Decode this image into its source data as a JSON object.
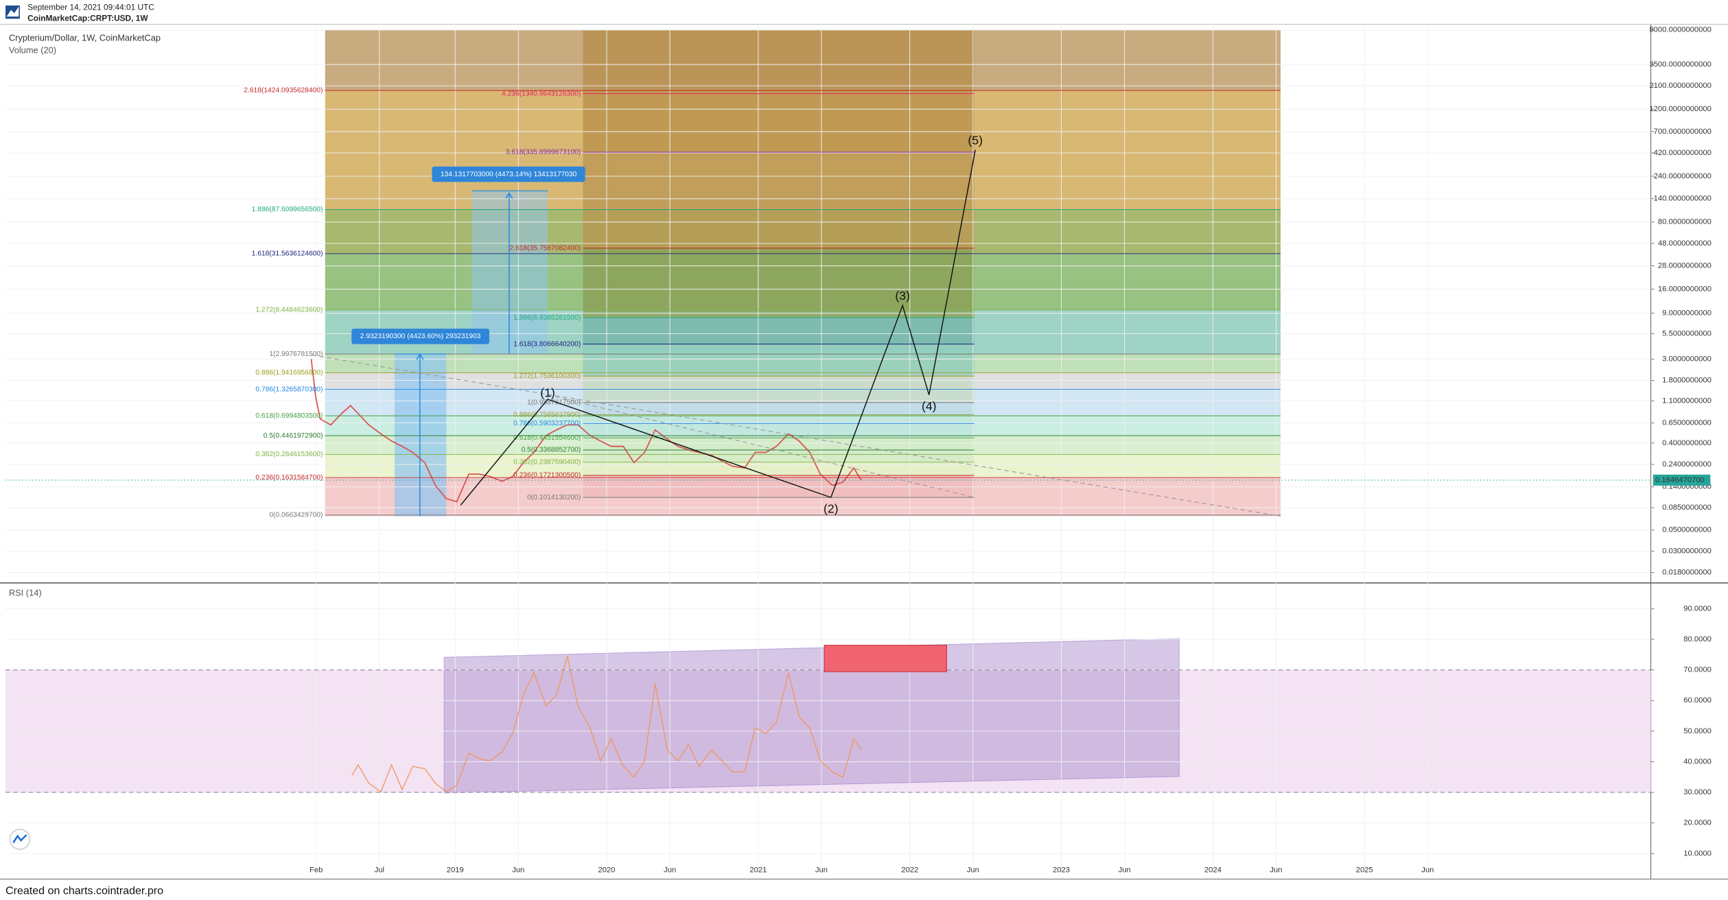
{
  "header": {
    "timestamp": "September 14, 2021 09:44:01 UTC",
    "symbol": "CoinMarketCap:CRPT:USD, 1W"
  },
  "legend": {
    "main": "Crypterium/Dollar, 1W, CoinMarketCap",
    "volume": "Volume (20)",
    "rsi": "RSI (14)"
  },
  "footer": "Created on charts.cointrader.pro",
  "chart_data": [
    {
      "type": "line",
      "log_y": true,
      "color": "#d9534f",
      "grid": true,
      "x": [
        2018.05,
        2018.08,
        2018.11,
        2018.18,
        2018.25,
        2018.31,
        2018.36,
        2018.43,
        2018.51,
        2018.58,
        2018.65,
        2018.72,
        2018.8,
        2018.87,
        2018.94,
        2019.01,
        2019.09,
        2019.16,
        2019.23,
        2019.31,
        2019.38,
        2019.45,
        2019.52,
        2019.6,
        2019.67,
        2019.74,
        2019.81,
        2019.89,
        2019.96,
        2020.03,
        2020.11,
        2020.18,
        2020.25,
        2020.32,
        2020.4,
        2020.47,
        2020.54,
        2020.61,
        2020.69,
        2020.76,
        2020.83,
        2020.91,
        2020.98,
        2021.05,
        2021.12,
        2021.2,
        2021.27,
        2021.34,
        2021.41,
        2021.49,
        2021.56,
        2021.63,
        2021.68
      ],
      "values": [
        3.0,
        1.2,
        0.71,
        0.62,
        0.81,
        0.98,
        0.81,
        0.62,
        0.5,
        0.42,
        0.37,
        0.32,
        0.25,
        0.145,
        0.106,
        0.098,
        0.19,
        0.19,
        0.18,
        0.16,
        0.18,
        0.25,
        0.32,
        0.48,
        0.55,
        0.62,
        0.62,
        0.48,
        0.42,
        0.37,
        0.37,
        0.25,
        0.32,
        0.55,
        0.44,
        0.37,
        0.34,
        0.32,
        0.3,
        0.26,
        0.23,
        0.22,
        0.32,
        0.32,
        0.37,
        0.5,
        0.42,
        0.32,
        0.19,
        0.145,
        0.157,
        0.22,
        0.1646
      ],
      "price_tag": {
        "value": 0.164647,
        "label": "0.1646470700"
      },
      "xlim": [
        2016.033,
        2026.89
      ],
      "xticks": [
        {
          "value": 2018.083,
          "label": "Feb"
        },
        {
          "value": 2018.5,
          "label": "Jul"
        },
        2019,
        {
          "value": 2019.417,
          "label": "Jun"
        },
        2020,
        {
          "value": 2020.417,
          "label": "Jun"
        },
        2021,
        {
          "value": 2021.417,
          "label": "Jun"
        },
        2022,
        {
          "value": 2022.417,
          "label": "Jun"
        },
        2023,
        {
          "value": 2023.417,
          "label": "Jun"
        },
        2024,
        {
          "value": 2024.417,
          "label": "Jun"
        },
        2025,
        {
          "value": 2025.417,
          "label": "Jun"
        }
      ],
      "ylim": [
        0.01457,
        9180
      ],
      "yticks": [
        {
          "value": 8000,
          "label": "8000.0000000000"
        },
        {
          "value": 3500,
          "label": "3500.0000000000"
        },
        {
          "value": 2100,
          "label": "2100.0000000000"
        },
        {
          "value": 1200,
          "label": "1200.0000000000"
        },
        {
          "value": 700,
          "label": "700.0000000000"
        },
        {
          "value": 420,
          "label": "420.0000000000"
        },
        {
          "value": 240,
          "label": "240.0000000000"
        },
        {
          "value": 140,
          "label": "140.0000000000"
        },
        {
          "value": 80,
          "label": "80.0000000000"
        },
        {
          "value": 48,
          "label": "48.0000000000"
        },
        {
          "value": 28,
          "label": "28.0000000000"
        },
        {
          "value": 16,
          "label": "16.0000000000"
        },
        {
          "value": 9,
          "label": "9.0000000000"
        },
        {
          "value": 5.5,
          "label": "5.5000000000"
        },
        {
          "value": 3,
          "label": "3.0000000000"
        },
        {
          "value": 1.8,
          "label": "1.8000000000"
        },
        {
          "value": 1.1,
          "label": "1.1000000000"
        },
        {
          "value": 0.65,
          "label": "0.6500000000"
        },
        {
          "value": 0.4,
          "label": "0.4000000000"
        },
        {
          "value": 0.24,
          "label": "0.2400000000"
        },
        {
          "value": 0.14,
          "label": "0.1400000000"
        },
        {
          "value": 0.085,
          "label": "0.0850000000"
        },
        {
          "value": 0.05,
          "label": "0.0500000000"
        },
        {
          "value": 0.03,
          "label": "0.0300000000"
        },
        {
          "value": 0.018,
          "label": "0.0180000000"
        }
      ]
    },
    {
      "type": "line",
      "color": "#f0965a",
      "grid": true,
      "x": [
        2018.32,
        2018.36,
        2018.43,
        2018.51,
        2018.58,
        2018.65,
        2018.72,
        2018.8,
        2018.87,
        2018.94,
        2019.01,
        2019.09,
        2019.16,
        2019.23,
        2019.31,
        2019.38,
        2019.45,
        2019.52,
        2019.6,
        2019.67,
        2019.74,
        2019.81,
        2019.89,
        2019.96,
        2020.03,
        2020.11,
        2020.18,
        2020.25,
        2020.32,
        2020.4,
        2020.47,
        2020.54,
        2020.61,
        2020.69,
        2020.76,
        2020.83,
        2020.91,
        2020.98,
        2021.05,
        2021.12,
        2021.2,
        2021.27,
        2021.34,
        2021.41,
        2021.49,
        2021.56,
        2021.63,
        2021.68
      ],
      "values": [
        35.6,
        39,
        33,
        30.2,
        39,
        30.9,
        38.5,
        37.7,
        33,
        30.2,
        32.3,
        42.8,
        41,
        40.3,
        43.2,
        49.3,
        61.9,
        69.1,
        58.3,
        61.9,
        74.5,
        58.3,
        51.1,
        40.3,
        47.5,
        38.5,
        34.9,
        40.3,
        65.5,
        43.9,
        40.3,
        45.7,
        38.5,
        43.9,
        40.3,
        36.7,
        36.7,
        51.1,
        49.3,
        52.9,
        69.1,
        54.7,
        51.1,
        40.3,
        36.7,
        34.9,
        47.5,
        43.9
      ],
      "band": [
        30,
        70
      ],
      "xlim": [
        2016.033,
        2026.89
      ],
      "ylim": [
        4.2,
        97.9
      ],
      "yticks": [
        {
          "value": 90,
          "label": "90.0000"
        },
        {
          "value": 80,
          "label": "80.0000"
        },
        {
          "value": 70,
          "label": "70.0000"
        },
        {
          "value": 60,
          "label": "60.0000"
        },
        {
          "value": 50,
          "label": "50.0000"
        },
        {
          "value": 40,
          "label": "40.0000"
        },
        {
          "value": 30,
          "label": "30.0000"
        },
        {
          "value": 20,
          "label": "20.0000"
        },
        {
          "value": 10,
          "label": "10.0000"
        }
      ]
    }
  ],
  "annotations": {
    "fib_left": [
      "2.618(1424.0935628400)",
      "1.886(87.6099656500)",
      "1.618(31.5636124600)",
      "1.272(8.4484623600)",
      "1(2.9976781500)",
      "0.886(1.9416956800)",
      "0.786(1.3265870300)",
      "0.618(0.6994803500)",
      "0.5(0.4461972900)",
      "0.382(0.2846153600)",
      "0.236(0.1631584700)",
      "0(0.0663429700)"
    ],
    "fib_right": [
      "4.236(1340.9643126300)",
      "3.618(335.8999873100)",
      "2.618(35.7587082400)",
      "1.886(6.9385281500)",
      "1.618(3.8066640200)",
      "1.272(1.7536100300)",
      "1(0.9587617500)",
      "0.886(0.7565637900)",
      "0.786(0.5903237700)",
      "0.618(0.4451554600)",
      "0.5(0.3368852700)",
      "0.382(0.2387590400)",
      "0.236(0.1721300500)",
      "0(0.1014130200)"
    ],
    "measures": [
      "2.9323190300 (4423.60%) 293231903",
      "134.1317703000 (4473.14%) 13413177030"
    ],
    "waves": [
      "(1)",
      "(2)",
      "(3)",
      "(4)",
      "(5)"
    ]
  }
}
